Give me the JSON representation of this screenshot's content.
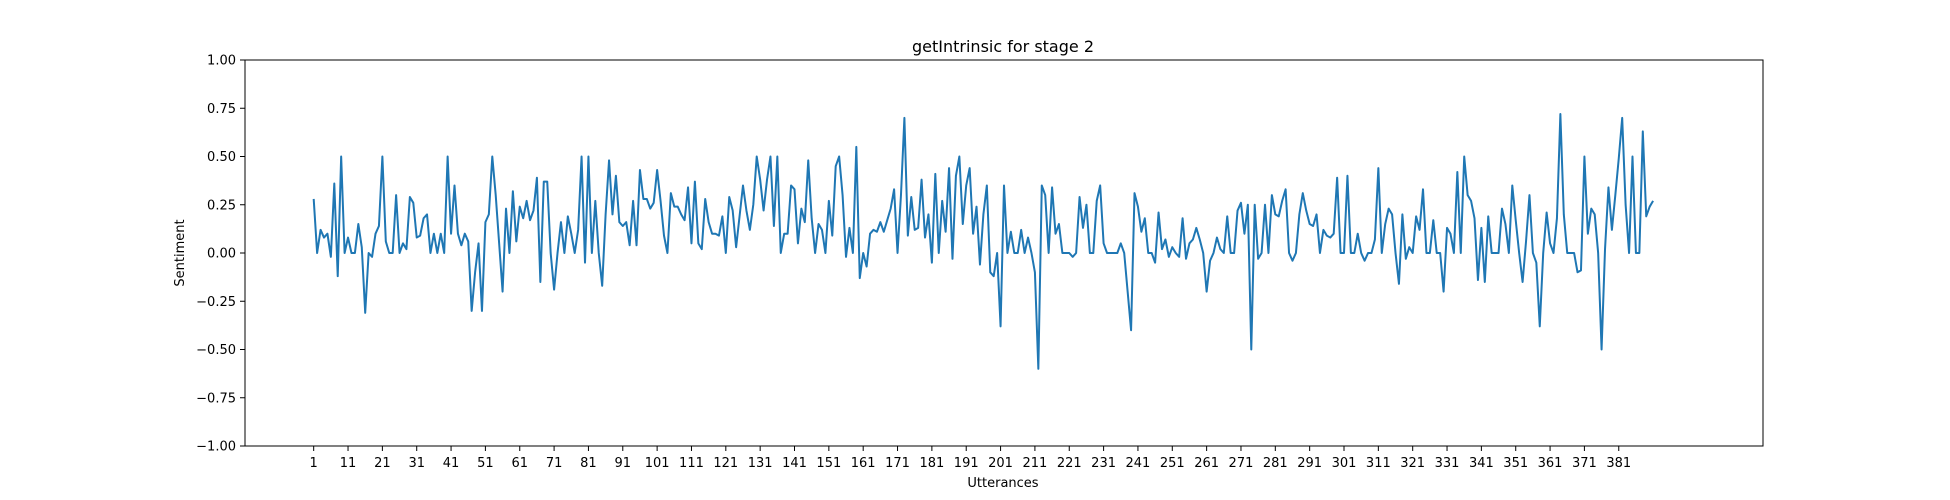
{
  "chart_data": {
    "type": "line",
    "title": "getIntrinsic for stage 2",
    "xlabel": "Utterances",
    "ylabel": "Sentiment",
    "ylim": [
      -1.0,
      1.0
    ],
    "xlim": [
      -19,
      423
    ],
    "y_ticks": [
      -1.0,
      -0.75,
      -0.5,
      -0.25,
      0.0,
      0.25,
      0.5,
      0.75,
      1.0
    ],
    "y_tick_labels": [
      "−1.00",
      "−0.75",
      "−0.50",
      "−0.25",
      "0.00",
      "0.25",
      "0.50",
      "0.75",
      "1.00"
    ],
    "x_ticks": [
      1,
      11,
      21,
      31,
      41,
      51,
      61,
      71,
      81,
      91,
      101,
      111,
      121,
      131,
      141,
      151,
      161,
      171,
      181,
      191,
      201,
      211,
      221,
      231,
      241,
      251,
      261,
      271,
      281,
      291,
      301,
      311,
      321,
      331,
      341,
      351,
      361,
      371,
      381
    ],
    "x_tick_labels": [
      "1",
      "11",
      "21",
      "31",
      "41",
      "51",
      "61",
      "71",
      "81",
      "91",
      "101",
      "111",
      "121",
      "131",
      "141",
      "151",
      "161",
      "171",
      "181",
      "191",
      "201",
      "211",
      "221",
      "231",
      "241",
      "251",
      "261",
      "271",
      "281",
      "291",
      "301",
      "311",
      "321",
      "331",
      "341",
      "351",
      "361",
      "371",
      "381"
    ],
    "grid": false,
    "series_color": "#1f77b4",
    "x_start": 1,
    "series": [
      {
        "values": [
          0.28,
          0.0,
          0.12,
          0.08,
          0.1,
          -0.02,
          0.36,
          -0.12,
          0.5,
          0.0,
          0.08,
          0.0,
          0.0,
          0.15,
          0.03,
          -0.31,
          0.0,
          -0.02,
          0.1,
          0.14,
          0.5,
          0.06,
          0.0,
          0.0,
          0.3,
          0.0,
          0.05,
          0.02,
          0.29,
          0.26,
          0.08,
          0.09,
          0.18,
          0.2,
          0.0,
          0.1,
          0.0,
          0.1,
          0.0,
          0.5,
          0.1,
          0.35,
          0.1,
          0.04,
          0.1,
          0.06,
          -0.3,
          -0.1,
          0.05,
          -0.3,
          0.16,
          0.2,
          0.5,
          0.3,
          0.05,
          -0.2,
          0.23,
          0.0,
          0.32,
          0.06,
          0.24,
          0.18,
          0.27,
          0.17,
          0.22,
          0.39,
          -0.15,
          0.37,
          0.37,
          0.0,
          -0.19,
          0.0,
          0.16,
          0.0,
          0.19,
          0.1,
          0.0,
          0.12,
          0.5,
          -0.05,
          0.5,
          0.0,
          0.27,
          0.0,
          -0.17,
          0.2,
          0.48,
          0.2,
          0.4,
          0.16,
          0.14,
          0.16,
          0.04,
          0.27,
          0.04,
          0.43,
          0.28,
          0.28,
          0.23,
          0.26,
          0.43,
          0.27,
          0.09,
          0.0,
          0.31,
          0.24,
          0.24,
          0.2,
          0.17,
          0.34,
          0.05,
          0.37,
          0.05,
          0.02,
          0.28,
          0.16,
          0.1,
          0.1,
          0.09,
          0.19,
          0.0,
          0.29,
          0.22,
          0.03,
          0.19,
          0.35,
          0.22,
          0.12,
          0.25,
          0.5,
          0.38,
          0.22,
          0.38,
          0.5,
          0.14,
          0.5,
          0.0,
          0.1,
          0.1,
          0.35,
          0.33,
          0.05,
          0.23,
          0.16,
          0.48,
          0.18,
          0.0,
          0.15,
          0.12,
          0.0,
          0.27,
          0.09,
          0.45,
          0.5,
          0.3,
          -0.02,
          0.13,
          0.0,
          0.55,
          -0.13,
          0.0,
          -0.07,
          0.1,
          0.12,
          0.11,
          0.16,
          0.11,
          0.17,
          0.23,
          0.33,
          0.0,
          0.3,
          0.7,
          0.09,
          0.29,
          0.12,
          0.13,
          0.38,
          0.08,
          0.2,
          -0.05,
          0.41,
          0.0,
          0.27,
          0.11,
          0.44,
          -0.03,
          0.4,
          0.5,
          0.15,
          0.35,
          0.44,
          0.1,
          0.24,
          -0.06,
          0.2,
          0.35,
          -0.1,
          -0.12,
          0.0,
          -0.38,
          0.35,
          0.0,
          0.11,
          0.0,
          0.0,
          0.12,
          0.0,
          0.08,
          0.0,
          -0.1,
          -0.6,
          0.35,
          0.3,
          0.0,
          0.34,
          0.1,
          0.15,
          0.0,
          0.0,
          0.0,
          -0.02,
          0.0,
          0.29,
          0.13,
          0.25,
          0.0,
          0.0,
          0.27,
          0.35,
          0.05,
          0.0,
          0.0,
          0.0,
          0.0,
          0.05,
          0.0,
          -0.2,
          -0.4,
          0.31,
          0.24,
          0.11,
          0.18,
          0.0,
          0.0,
          -0.05,
          0.21,
          0.02,
          0.07,
          -0.02,
          0.03,
          0.0,
          -0.02,
          0.18,
          -0.03,
          0.05,
          0.07,
          0.13,
          0.07,
          0.0,
          -0.2,
          -0.04,
          0.0,
          0.08,
          0.02,
          0.0,
          0.19,
          0.0,
          0.0,
          0.22,
          0.26,
          0.1,
          0.25,
          -0.5,
          0.25,
          -0.03,
          0.0,
          0.25,
          0.0,
          0.3,
          0.2,
          0.19,
          0.27,
          0.33,
          0.0,
          -0.04,
          0.0,
          0.2,
          0.31,
          0.22,
          0.15,
          0.14,
          0.2,
          0.0,
          0.12,
          0.09,
          0.08,
          0.1,
          0.39,
          0.0,
          0.0,
          0.4,
          0.0,
          0.0,
          0.1,
          0.0,
          -0.04,
          0.0,
          0.0,
          0.07,
          0.44,
          0.0,
          0.15,
          0.23,
          0.2,
          0.0,
          -0.16,
          0.2,
          -0.03,
          0.03,
          0.0,
          0.19,
          0.12,
          0.33,
          0.0,
          0.0,
          0.17,
          0.0,
          0.0,
          -0.2,
          0.13,
          0.1,
          0.0,
          0.42,
          0.0,
          0.5,
          0.3,
          0.27,
          0.18,
          -0.14,
          0.13,
          -0.15,
          0.19,
          0.0,
          0.0,
          0.0,
          0.23,
          0.15,
          0.0,
          0.35,
          0.17,
          0.0,
          -0.15,
          0.06,
          0.3,
          0.0,
          -0.05,
          -0.38,
          0.0,
          0.21,
          0.05,
          0.0,
          0.18,
          0.72,
          0.2,
          0.0,
          0.0,
          0.0,
          -0.1,
          -0.09,
          0.5,
          0.1,
          0.23,
          0.2,
          0.0,
          -0.5,
          0.02,
          0.34,
          0.12,
          0.3,
          0.49,
          0.7,
          0.25,
          0.0,
          0.5,
          0.0,
          0.0,
          0.63,
          0.19,
          0.24,
          0.27
        ]
      }
    ]
  }
}
